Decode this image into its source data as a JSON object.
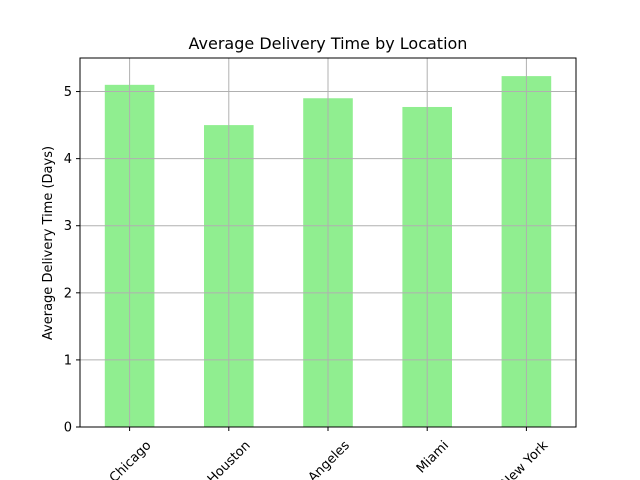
{
  "chart_data": {
    "type": "bar",
    "title": "Average Delivery Time by Location",
    "xlabel": "",
    "ylabel": "Average Delivery Time (Days)",
    "categories": [
      "Chicago",
      "Houston",
      "Los Angeles",
      "Miami",
      "New York"
    ],
    "values": [
      5.1,
      4.5,
      4.9,
      4.77,
      5.23
    ],
    "ylim": [
      0,
      5.5
    ],
    "yticks": [
      0,
      1,
      2,
      3,
      4,
      5
    ],
    "grid": true,
    "legend": "none",
    "bar_color": "#90ee90",
    "grid_color": "#b0b0b0"
  }
}
